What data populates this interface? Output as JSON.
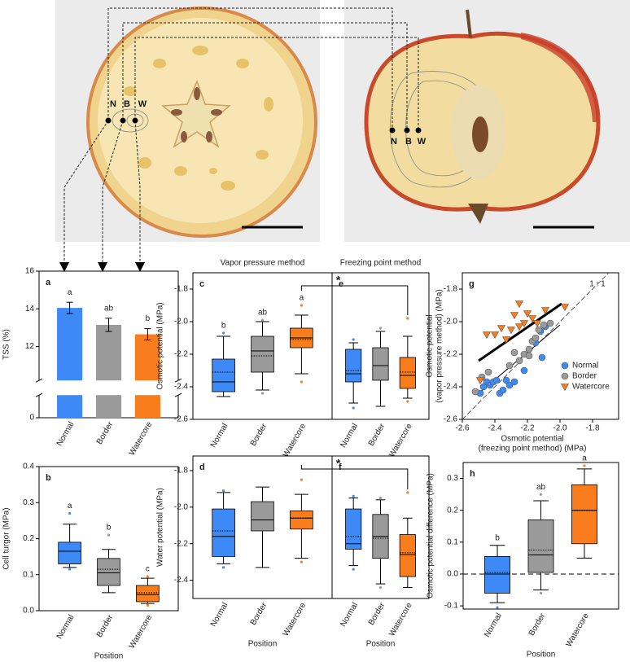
{
  "photo_labels": {
    "left": [
      "N",
      "B",
      "W"
    ],
    "right": [
      "N",
      "B",
      "W"
    ]
  },
  "chart_data": [
    {
      "type": "bar",
      "panel": "a",
      "ylabel": "TSS (%)",
      "categories": [
        "Normal",
        "Border",
        "Watercore"
      ],
      "colors": [
        "#3d8af7",
        "#9a9a9a",
        "#f97d1c"
      ],
      "values": [
        14.05,
        13.15,
        12.65
      ],
      "errors": [
        0.3,
        0.35,
        0.3
      ],
      "letters": [
        "a",
        "ab",
        "b"
      ],
      "ylim": [
        0,
        16
      ],
      "axis_break": [
        1.2,
        10.2
      ],
      "yticks": [
        0,
        12,
        14,
        16
      ]
    },
    {
      "type": "box",
      "panel": "c",
      "subtitle": "Vapor pressure method",
      "ylabel": "Osmotic potential (MPa)",
      "categories": [
        "Normal",
        "Border",
        "Watercore"
      ],
      "colors": [
        "#3d8af7",
        "#9a9a9a",
        "#f97d1c"
      ],
      "boxes": [
        {
          "min": -2.46,
          "q1": -2.43,
          "median": -2.37,
          "q3": -2.23,
          "max": -2.09,
          "mean": -2.31,
          "outliers": [
            -2.07
          ]
        },
        {
          "min": -2.42,
          "q1": -2.31,
          "median": -2.18,
          "q3": -2.09,
          "max": -2.0,
          "mean": -2.21,
          "outliers": [
            -1.99,
            -2.44
          ]
        },
        {
          "min": -2.32,
          "q1": -2.16,
          "median": -2.1,
          "q3": -2.04,
          "max": -1.96,
          "mean": -2.11,
          "outliers": [
            -1.9,
            -2.37
          ]
        }
      ],
      "letters": [
        "b",
        "ab",
        "a"
      ],
      "ylim": [
        -2.6,
        -1.7
      ],
      "yticks": [
        -1.8,
        {
          "value": -2,
          "label": "-2.0"
        },
        -2.2,
        -2.4,
        -2.6
      ]
    },
    {
      "type": "box",
      "panel": "e",
      "subtitle": "Freezing point method",
      "significance": "*",
      "categories": [
        "Normal",
        "Border",
        "Watercore"
      ],
      "colors": [
        "#3d8af7",
        "#9a9a9a",
        "#f97d1c"
      ],
      "boxes": [
        {
          "min": -2.5,
          "q1": -2.37,
          "median": -2.32,
          "q3": -2.17,
          "max": -2.13,
          "mean": -2.3,
          "outliers": [
            -2.11,
            -2.53
          ]
        },
        {
          "min": -2.52,
          "q1": -2.36,
          "median": -2.27,
          "q3": -2.16,
          "max": -2.06,
          "mean": -2.27,
          "outliers": [
            -2.04
          ]
        },
        {
          "min": -2.47,
          "q1": -2.41,
          "median": -2.33,
          "q3": -2.22,
          "max": -2.09,
          "mean": -2.31,
          "outliers": [
            -1.98,
            -2.49
          ]
        }
      ],
      "ylim": [
        -2.6,
        -1.7
      ]
    },
    {
      "type": "scatter",
      "panel": "g",
      "ylabel": [
        "Osmotic potential",
        "(vapor pressure method) (MPa)"
      ],
      "xlabel": [
        "Osmotic potential",
        "(freezing point method) (MPa)"
      ],
      "xlim": [
        -2.6,
        -1.64
      ],
      "ylim": [
        -2.6,
        -1.7
      ],
      "xticks": [
        -2.6,
        -2.4,
        -2.2,
        {
          "value": -2,
          "label": "-2.0"
        },
        -1.8
      ],
      "yticks": [
        -1.8,
        {
          "value": -2,
          "label": "-2.0"
        },
        -2.2,
        -2.4,
        -2.6
      ],
      "identity_label": "1 : 1",
      "legend": "center right",
      "lines": [
        {
          "x": [
            -2.5,
            -1.99
          ],
          "y": [
            -2.24,
            -1.89
          ],
          "style": "bold"
        },
        {
          "x": [
            -2.5,
            -2.0
          ],
          "y": [
            -2.44,
            -2.02
          ],
          "style": "thin"
        }
      ],
      "series": [
        {
          "name": "Normal",
          "color": "#3d8af7",
          "marker": "circle",
          "x": [
            -2.49,
            -2.47,
            -2.45,
            -2.43,
            -2.41,
            -2.39,
            -2.37,
            -2.35,
            -2.33,
            -2.31,
            -2.28,
            -2.22,
            -2.15,
            -2.12,
            -2.09,
            -2.11
          ],
          "y": [
            -2.44,
            -2.4,
            -2.37,
            -2.39,
            -2.37,
            -2.36,
            -2.44,
            -2.42,
            -2.36,
            -2.39,
            -2.37,
            -2.3,
            -2.13,
            -2.06,
            -2.03,
            -2.22
          ]
        },
        {
          "name": "Border",
          "color": "#9a9a9a",
          "marker": "circle",
          "x": [
            -2.52,
            -2.48,
            -2.44,
            -2.31,
            -2.28,
            -2.25,
            -2.22,
            -2.19,
            -2.17,
            -2.15,
            -2.13,
            -2.1,
            -2.06,
            -2.19
          ],
          "y": [
            -2.43,
            -2.34,
            -2.31,
            -2.27,
            -2.19,
            -2.24,
            -2.2,
            -2.17,
            -2.12,
            -2.1,
            -2.05,
            -2.02,
            -2.01,
            -2.21
          ]
        },
        {
          "name": "Watercore",
          "color": "#f97d1c",
          "marker": "triangle-down",
          "x": [
            -2.49,
            -2.45,
            -2.4,
            -2.36,
            -2.33,
            -2.3,
            -2.28,
            -2.25,
            -2.22,
            -2.2,
            -2.17,
            -2.14,
            -2.09,
            -2.25,
            -1.97
          ],
          "y": [
            -2.36,
            -2.08,
            -2.08,
            -2.04,
            -2.11,
            -2.05,
            -1.96,
            -2.03,
            -2.01,
            -1.95,
            -1.98,
            -2.01,
            -1.93,
            -1.89,
            -1.91
          ]
        }
      ]
    },
    {
      "type": "box",
      "panel": "b",
      "ylabel": "Cell turgor (MPa)",
      "xlabel": "Position",
      "categories": [
        "Normal",
        "Border",
        "Watercore"
      ],
      "colors": [
        "#3d8af7",
        "#9a9a9a",
        "#f97d1c"
      ],
      "boxes": [
        {
          "min": 0.12,
          "q1": 0.13,
          "median": 0.165,
          "q3": 0.19,
          "max": 0.24,
          "mean": 0.165,
          "outliers": [
            0.27,
            0.115
          ]
        },
        {
          "min": 0.05,
          "q1": 0.07,
          "median": 0.105,
          "q3": 0.145,
          "max": 0.17,
          "mean": 0.115,
          "outliers": [
            0.21
          ]
        },
        {
          "min": 0.02,
          "q1": 0.025,
          "median": 0.045,
          "q3": 0.07,
          "max": 0.09,
          "mean": 0.05,
          "outliers": [
            0.095,
            0.015
          ]
        }
      ],
      "letters": [
        "a",
        "b",
        "c"
      ],
      "ylim": [
        0,
        0.4
      ],
      "yticks": [
        {
          "value": 0,
          "label": "0.0"
        },
        0.1,
        0.2,
        0.3,
        0.4
      ]
    },
    {
      "type": "box",
      "panel": "d",
      "ylabel": "Water potential (MPa)",
      "xlabel": "Position",
      "categories": [
        "Normal",
        "Border",
        "Watercore"
      ],
      "colors": [
        "#3d8af7",
        "#9a9a9a",
        "#f97d1c"
      ],
      "boxes": [
        {
          "min": -2.31,
          "q1": -2.27,
          "median": -2.16,
          "q3": -2.01,
          "max": -1.92,
          "mean": -2.13,
          "outliers": [
            -1.91,
            -2.33
          ]
        },
        {
          "min": -2.33,
          "q1": -2.13,
          "median": -2.07,
          "q3": -1.97,
          "max": -1.89,
          "mean": -2.07,
          "outliers": []
        },
        {
          "min": -2.28,
          "q1": -2.12,
          "median": -2.06,
          "q3": -2.02,
          "max": -1.93,
          "mean": -2.06,
          "outliers": [
            -1.85,
            -2.3
          ]
        }
      ],
      "ylim": [
        -2.5,
        -1.72
      ],
      "yticks": [
        -1.8,
        {
          "value": -2,
          "label": "-2.0"
        },
        -2.2,
        -2.4
      ]
    },
    {
      "type": "box",
      "panel": "f",
      "xlabel": "Position",
      "significance": "*",
      "categories": [
        "Normal",
        "Border",
        "Watercore"
      ],
      "colors": [
        "#3d8af7",
        "#9a9a9a",
        "#f97d1c"
      ],
      "boxes": [
        {
          "min": -2.32,
          "q1": -2.23,
          "median": -2.2,
          "q3": -2.01,
          "max": -1.95,
          "mean": -2.16,
          "outliers": [
            -1.94,
            -2.34
          ]
        },
        {
          "min": -2.42,
          "q1": -2.28,
          "median": -2.16,
          "q3": -2.04,
          "max": -1.96,
          "mean": -2.17,
          "outliers": [
            -1.95,
            -2.44
          ]
        },
        {
          "min": -2.44,
          "q1": -2.38,
          "median": -2.26,
          "q3": -2.15,
          "max": -2.06,
          "mean": -2.25,
          "outliers": [
            -1.92
          ]
        }
      ],
      "ylim": [
        -2.5,
        -1.72
      ]
    },
    {
      "type": "box",
      "panel": "h",
      "ylabel": "Osmotic potential difference (MPa)",
      "xlabel": "Position",
      "categories": [
        "Normal",
        "Border",
        "Watercore"
      ],
      "colors": [
        "#3d8af7",
        "#9a9a9a",
        "#f97d1c"
      ],
      "boxes": [
        {
          "min": -0.09,
          "q1": -0.06,
          "median": 0.0,
          "q3": 0.055,
          "max": 0.09,
          "mean": 0.005,
          "outliers": [
            -0.105
          ]
        },
        {
          "min": -0.05,
          "q1": 0.005,
          "median": 0.06,
          "q3": 0.17,
          "max": 0.23,
          "mean": 0.075,
          "outliers": [
            0.25,
            -0.06
          ]
        },
        {
          "min": 0.05,
          "q1": 0.095,
          "median": 0.2,
          "q3": 0.28,
          "max": 0.33,
          "mean": 0.2,
          "outliers": [
            0.34
          ]
        }
      ],
      "letters": [
        "b",
        "ab",
        "a"
      ],
      "hline": 0,
      "ylim": [
        -0.11,
        0.35
      ],
      "yticks": [
        -0.1,
        {
          "value": 0,
          "label": "0.0"
        },
        0.1,
        0.2,
        0.3
      ]
    }
  ]
}
